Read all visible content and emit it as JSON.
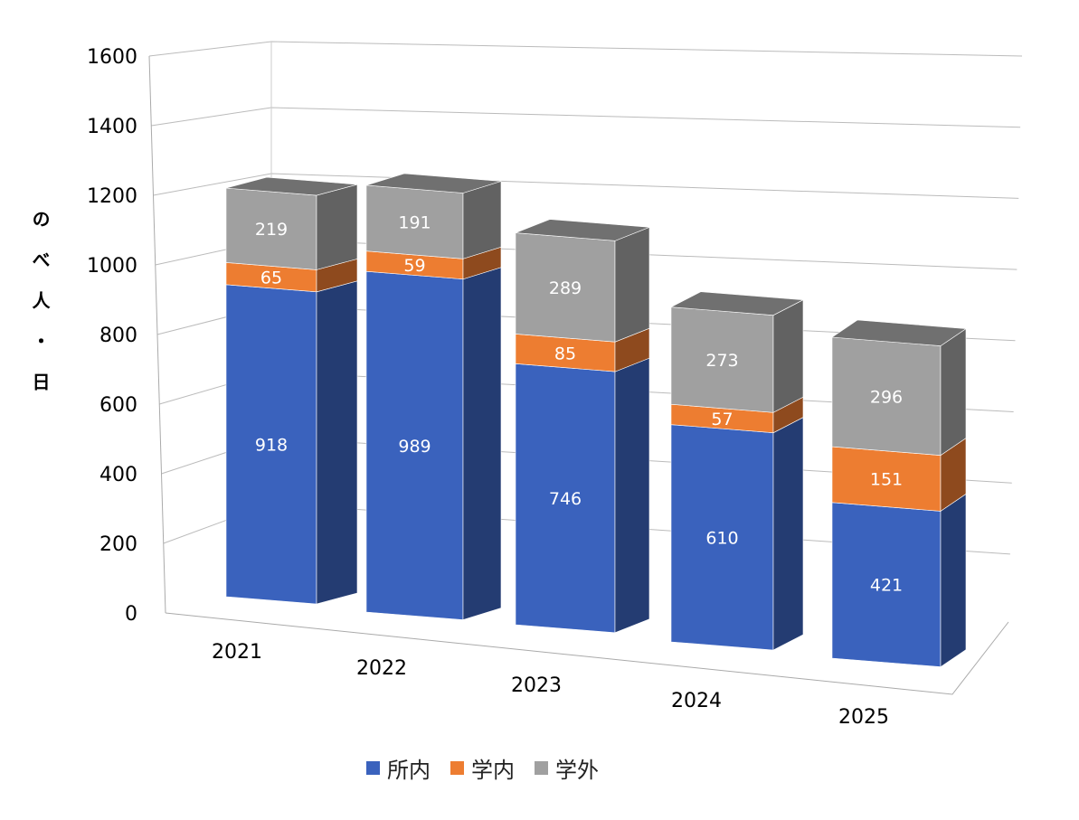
{
  "chart_data": {
    "type": "bar",
    "stacked": true,
    "three_d": true,
    "title": "",
    "xlabel": "",
    "ylabel": "のべ人・日",
    "ylim": [
      0,
      1600
    ],
    "yticks": [
      0,
      200,
      400,
      600,
      800,
      1000,
      1200,
      1400,
      1600
    ],
    "grid": true,
    "legend_position": "bottom",
    "categories": [
      "2021",
      "2022",
      "2023",
      "2024",
      "2025"
    ],
    "series": [
      {
        "name": "所内",
        "color": "#3A62BD",
        "values": [
          918,
          989,
          746,
          610,
          421
        ]
      },
      {
        "name": "学内",
        "color": "#ED7D31",
        "values": [
          65,
          59,
          85,
          57,
          151
        ]
      },
      {
        "name": "学外",
        "color": "#A0A0A0",
        "values": [
          219,
          191,
          289,
          273,
          296
        ]
      }
    ]
  }
}
